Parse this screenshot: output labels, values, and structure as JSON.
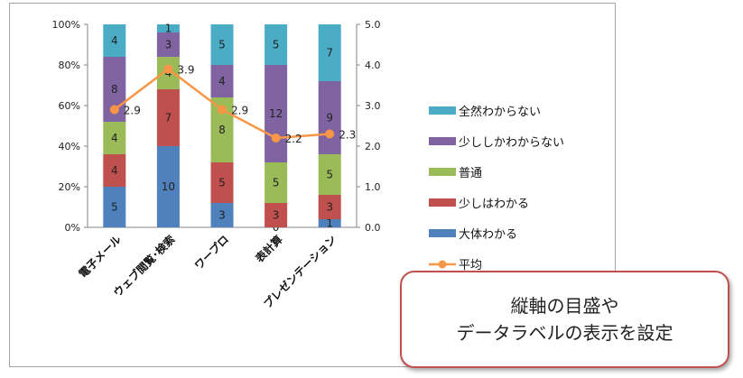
{
  "chart_data": {
    "type": "bar",
    "stacked": true,
    "normalized_percent": true,
    "categories": [
      "電子メール",
      "ウェブ閲覧･検索",
      "ワープロ",
      "表計算",
      "プレゼンテーション"
    ],
    "series": [
      {
        "name": "大体わかる",
        "color": "#4f81bd",
        "values": [
          5,
          10,
          3,
          0,
          1
        ]
      },
      {
        "name": "少しはわかる",
        "color": "#c0504d",
        "values": [
          4,
          7,
          5,
          3,
          3
        ]
      },
      {
        "name": "普通",
        "color": "#9bbb59",
        "values": [
          4,
          4,
          8,
          5,
          5
        ]
      },
      {
        "name": "少ししかわからない",
        "color": "#8064a2",
        "values": [
          8,
          3,
          4,
          12,
          9
        ]
      },
      {
        "name": "全然わからない",
        "color": "#4bacc6",
        "values": [
          4,
          1,
          5,
          5,
          7
        ]
      }
    ],
    "line_series": {
      "name": "平均",
      "color": "#f79646",
      "values": [
        2.9,
        3.9,
        2.9,
        2.2,
        2.3
      ],
      "axis": "secondary"
    },
    "y_left": {
      "ticks": [
        "0%",
        "20%",
        "40%",
        "60%",
        "80%",
        "100%"
      ],
      "range": [
        0,
        100
      ]
    },
    "y_right": {
      "ticks": [
        "0.0",
        "1.0",
        "2.0",
        "3.0",
        "4.0",
        "5.0"
      ],
      "range": [
        0,
        5
      ]
    },
    "legend_position": "right",
    "grid": false
  },
  "callout": {
    "line1": "縦軸の目盛や",
    "line2": "データラベルの表示を設定"
  }
}
